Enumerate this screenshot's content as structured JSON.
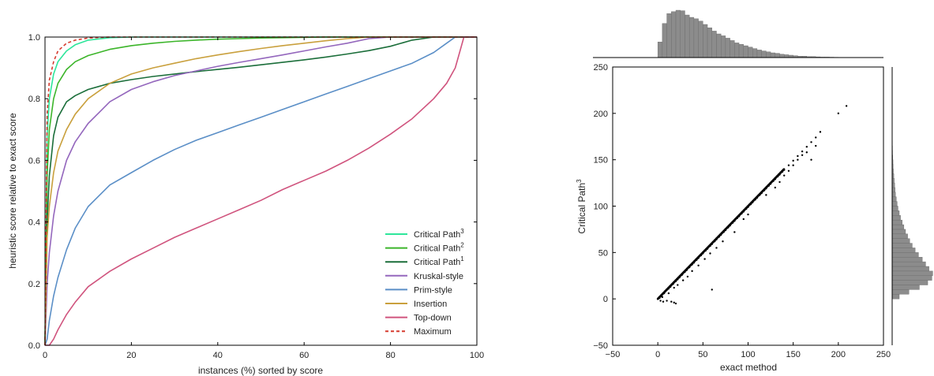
{
  "chart_data": [
    {
      "type": "line",
      "xlabel": "instances (%) sorted by score",
      "ylabel": "heuristic score relative to exact score",
      "xlim": [
        0,
        100
      ],
      "ylim": [
        0.0,
        1.0
      ],
      "x_ticks": [
        "0",
        "20",
        "40",
        "60",
        "80",
        "100"
      ],
      "y_ticks": [
        "0.0",
        "0.2",
        "0.4",
        "0.6",
        "0.8",
        "1.0"
      ],
      "grid": false,
      "legend_position": "bottom-right",
      "x": [
        0,
        0.5,
        1,
        2,
        3,
        5,
        7,
        10,
        15,
        20,
        25,
        30,
        35,
        40,
        45,
        50,
        55,
        60,
        65,
        70,
        75,
        80,
        85,
        90,
        93,
        95,
        96,
        97,
        100
      ],
      "series": [
        {
          "name": "Critical Path",
          "sup": "3",
          "color": "#2ee69b",
          "dash": false,
          "values": [
            0,
            0.68,
            0.8,
            0.88,
            0.92,
            0.955,
            0.975,
            0.99,
            0.998,
            1,
            1,
            1,
            1,
            1,
            1,
            1,
            1,
            1,
            1,
            1,
            1,
            1,
            1,
            1,
            1,
            1,
            1,
            1,
            1
          ]
        },
        {
          "name": "Critical Path",
          "sup": "2",
          "color": "#3cb52a",
          "dash": false,
          "values": [
            0,
            0.55,
            0.7,
            0.8,
            0.85,
            0.895,
            0.92,
            0.94,
            0.96,
            0.972,
            0.98,
            0.986,
            0.99,
            0.993,
            0.995,
            0.997,
            0.998,
            0.999,
            1,
            1,
            1,
            1,
            1,
            1,
            1,
            1,
            1,
            1,
            1
          ]
        },
        {
          "name": "Critical Path",
          "sup": "1",
          "color": "#1b6e3a",
          "dash": false,
          "values": [
            0,
            0.4,
            0.55,
            0.68,
            0.74,
            0.79,
            0.81,
            0.83,
            0.85,
            0.862,
            0.872,
            0.88,
            0.888,
            0.895,
            0.902,
            0.91,
            0.918,
            0.926,
            0.935,
            0.945,
            0.956,
            0.97,
            0.99,
            1,
            1,
            1,
            1,
            1,
            1
          ]
        },
        {
          "name": "Kruskal-style",
          "color": "#9467bd",
          "dash": false,
          "values": [
            0,
            0.2,
            0.3,
            0.42,
            0.5,
            0.6,
            0.66,
            0.72,
            0.79,
            0.83,
            0.855,
            0.875,
            0.89,
            0.905,
            0.918,
            0.93,
            0.942,
            0.955,
            0.968,
            0.98,
            0.995,
            1,
            1,
            1,
            1,
            1,
            1,
            1,
            1
          ]
        },
        {
          "name": "Prim-style",
          "color": "#5b8fc7",
          "dash": false,
          "values": [
            0,
            0.02,
            0.08,
            0.16,
            0.22,
            0.31,
            0.38,
            0.45,
            0.52,
            0.56,
            0.6,
            0.635,
            0.665,
            0.69,
            0.715,
            0.74,
            0.765,
            0.79,
            0.815,
            0.84,
            0.865,
            0.89,
            0.915,
            0.95,
            0.98,
            1,
            1,
            1,
            1
          ]
        },
        {
          "name": "Insertion",
          "color": "#c9a03d",
          "dash": false,
          "values": [
            0,
            0.35,
            0.45,
            0.56,
            0.63,
            0.7,
            0.75,
            0.8,
            0.85,
            0.88,
            0.9,
            0.915,
            0.93,
            0.942,
            0.953,
            0.963,
            0.972,
            0.98,
            0.988,
            0.995,
            1,
            1,
            1,
            1,
            1,
            1,
            1,
            1,
            1
          ]
        },
        {
          "name": "Top-down",
          "color": "#d0547e",
          "dash": false,
          "values": [
            0,
            0,
            0,
            0.02,
            0.05,
            0.1,
            0.14,
            0.19,
            0.24,
            0.28,
            0.315,
            0.35,
            0.38,
            0.41,
            0.44,
            0.47,
            0.505,
            0.535,
            0.565,
            0.6,
            0.64,
            0.685,
            0.735,
            0.8,
            0.85,
            0.9,
            0.95,
            1,
            1
          ]
        },
        {
          "name": "Maximum",
          "color": "#d63a2e",
          "dash": true,
          "values": [
            0,
            0.75,
            0.86,
            0.92,
            0.955,
            0.98,
            0.99,
            0.997,
            1,
            1,
            1,
            1,
            1,
            1,
            1,
            1,
            1,
            1,
            1,
            1,
            1,
            1,
            1,
            1,
            1,
            1,
            1,
            1,
            1
          ]
        }
      ]
    },
    {
      "type": "scatter",
      "xlabel": "exact method",
      "ylabel": "Critical Path",
      "ylabel_sup": "3",
      "xlim": [
        -50,
        250
      ],
      "ylim": [
        -50,
        250
      ],
      "x_ticks": [
        "−50",
        "0",
        "50",
        "100",
        "150",
        "200",
        "250"
      ],
      "y_ticks": [
        "−50",
        "0",
        "50",
        "100",
        "150",
        "200",
        "250"
      ],
      "grid": false,
      "point_color": "#000000",
      "points": [
        [
          0,
          0
        ],
        [
          2,
          1
        ],
        [
          4,
          3
        ],
        [
          5,
          5
        ],
        [
          7,
          6
        ],
        [
          8,
          8
        ],
        [
          10,
          10
        ],
        [
          12,
          11
        ],
        [
          14,
          13
        ],
        [
          15,
          15
        ],
        [
          17,
          16
        ],
        [
          18,
          18
        ],
        [
          20,
          19
        ],
        [
          22,
          21
        ],
        [
          24,
          23
        ],
        [
          25,
          25
        ],
        [
          27,
          26
        ],
        [
          30,
          29
        ],
        [
          32,
          31
        ],
        [
          35,
          34
        ],
        [
          38,
          37
        ],
        [
          40,
          39
        ],
        [
          43,
          42
        ],
        [
          45,
          44
        ],
        [
          48,
          47
        ],
        [
          50,
          49
        ],
        [
          53,
          52
        ],
        [
          55,
          54
        ],
        [
          58,
          57
        ],
        [
          60,
          59
        ],
        [
          63,
          62
        ],
        [
          65,
          64
        ],
        [
          68,
          67
        ],
        [
          70,
          69
        ],
        [
          73,
          72
        ],
        [
          75,
          74
        ],
        [
          78,
          77
        ],
        [
          80,
          79
        ],
        [
          83,
          82
        ],
        [
          85,
          84
        ],
        [
          88,
          87
        ],
        [
          90,
          89
        ],
        [
          93,
          92
        ],
        [
          95,
          94
        ],
        [
          98,
          97
        ],
        [
          100,
          99
        ],
        [
          103,
          102
        ],
        [
          105,
          104
        ],
        [
          108,
          107
        ],
        [
          110,
          109
        ],
        [
          113,
          112
        ],
        [
          115,
          114
        ],
        [
          118,
          117
        ],
        [
          120,
          119
        ],
        [
          123,
          122
        ],
        [
          125,
          124
        ],
        [
          128,
          127
        ],
        [
          130,
          129
        ],
        [
          133,
          132
        ],
        [
          135,
          134
        ],
        [
          138,
          137
        ],
        [
          140,
          139
        ],
        [
          145,
          144
        ],
        [
          150,
          149
        ],
        [
          155,
          154
        ],
        [
          160,
          159
        ],
        [
          165,
          164
        ],
        [
          170,
          169
        ],
        [
          175,
          174
        ],
        [
          180,
          180
        ],
        [
          200,
          200
        ],
        [
          209,
          208
        ],
        [
          3,
          -2
        ],
        [
          6,
          -3
        ],
        [
          10,
          -2
        ],
        [
          15,
          -3
        ],
        [
          18,
          -4
        ],
        [
          20,
          -5
        ],
        [
          5,
          2
        ],
        [
          12,
          6
        ],
        [
          18,
          12
        ],
        [
          22,
          15
        ],
        [
          28,
          20
        ],
        [
          33,
          24
        ],
        [
          38,
          30
        ],
        [
          45,
          36
        ],
        [
          52,
          43
        ],
        [
          58,
          49
        ],
        [
          65,
          55
        ],
        [
          72,
          62
        ],
        [
          85,
          72
        ],
        [
          95,
          86
        ],
        [
          100,
          91
        ],
        [
          120,
          112
        ],
        [
          130,
          120
        ],
        [
          135,
          126
        ],
        [
          140,
          133
        ],
        [
          145,
          138
        ],
        [
          150,
          144
        ],
        [
          155,
          150
        ],
        [
          160,
          155
        ],
        [
          165,
          158
        ],
        [
          170,
          150
        ],
        [
          175,
          165
        ],
        [
          60,
          10
        ]
      ],
      "top_histogram": {
        "bin_start": 0,
        "bin_width": 5,
        "counts": [
          0.33,
          0.72,
          0.93,
          0.97,
          1.0,
          0.99,
          0.9,
          0.85,
          0.82,
          0.77,
          0.7,
          0.63,
          0.56,
          0.5,
          0.46,
          0.41,
          0.36,
          0.31,
          0.28,
          0.25,
          0.22,
          0.19,
          0.16,
          0.14,
          0.12,
          0.1,
          0.09,
          0.07,
          0.06,
          0.05,
          0.04,
          0.03,
          0.03,
          0.02,
          0.02,
          0.015,
          0.01,
          0.01,
          0.008,
          0.006,
          0.005,
          0.004,
          0.003,
          0.003
        ]
      },
      "right_histogram": {
        "bin_start": 0,
        "bin_width": 5,
        "counts": [
          0.17,
          0.4,
          0.65,
          0.85,
          0.95,
          0.97,
          0.88,
          0.8,
          0.72,
          0.63,
          0.55,
          0.48,
          0.42,
          0.37,
          0.32,
          0.28,
          0.24,
          0.2,
          0.17,
          0.14,
          0.12,
          0.1,
          0.08,
          0.07,
          0.06,
          0.05,
          0.04,
          0.03,
          0.025,
          0.02,
          0.015,
          0.01,
          0.008,
          0.006,
          0.004,
          0.003
        ]
      }
    }
  ]
}
